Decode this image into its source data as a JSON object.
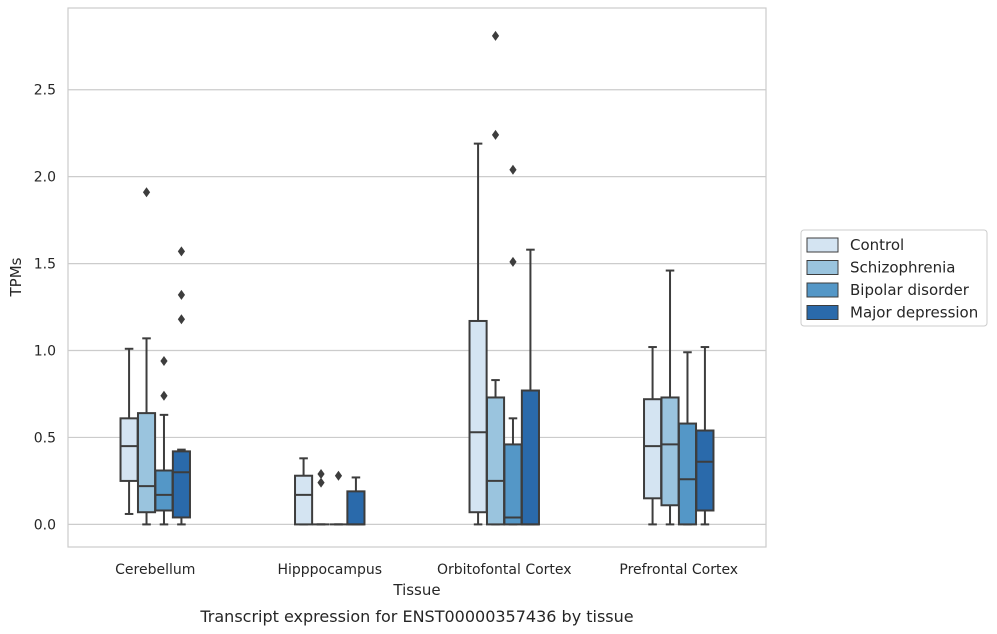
{
  "caption": "Transcript expression for ENST00000357436 by tissue",
  "chart_data": {
    "type": "box",
    "title": "",
    "xlabel": "Tissue",
    "ylabel": "TPMs",
    "ylim": [
      -0.13,
      2.97
    ],
    "yticks": [
      0.0,
      0.5,
      1.0,
      1.5,
      2.0,
      2.5
    ],
    "ytick_labels": [
      "0.0",
      "0.5",
      "1.0",
      "1.5",
      "2.0",
      "2.5"
    ],
    "grid": "horizontal",
    "legend_position": "right",
    "categories": [
      "Cerebellum",
      "Hipppocampus",
      "Orbitofontal Cortex",
      "Prefrontal Cortex"
    ],
    "series": [
      {
        "name": "Control",
        "color": "#d4e4f2",
        "boxes": [
          {
            "whisker_low": 0.06,
            "q1": 0.25,
            "median": 0.45,
            "q3": 0.61,
            "whisker_high": 1.01,
            "outliers": []
          },
          {
            "whisker_low": 0.0,
            "q1": 0.0,
            "median": 0.17,
            "q3": 0.28,
            "whisker_high": 0.38,
            "outliers": []
          },
          {
            "whisker_low": 0.0,
            "q1": 0.07,
            "median": 0.53,
            "q3": 1.17,
            "whisker_high": 2.19,
            "outliers": []
          },
          {
            "whisker_low": 0.0,
            "q1": 0.15,
            "median": 0.45,
            "q3": 0.72,
            "whisker_high": 1.02,
            "outliers": []
          }
        ]
      },
      {
        "name": "Schizophrenia",
        "color": "#9ac4de",
        "boxes": [
          {
            "whisker_low": 0.0,
            "q1": 0.07,
            "median": 0.22,
            "q3": 0.64,
            "whisker_high": 1.07,
            "outliers": [
              1.91
            ]
          },
          {
            "whisker_low": 0.0,
            "q1": 0.0,
            "median": 0.0,
            "q3": 0.0,
            "whisker_high": 0.0,
            "outliers": [
              0.24,
              0.29
            ]
          },
          {
            "whisker_low": 0.0,
            "q1": 0.0,
            "median": 0.25,
            "q3": 0.73,
            "whisker_high": 0.83,
            "outliers": [
              2.24,
              2.81
            ]
          },
          {
            "whisker_low": 0.0,
            "q1": 0.11,
            "median": 0.46,
            "q3": 0.73,
            "whisker_high": 1.46,
            "outliers": []
          }
        ]
      },
      {
        "name": "Bipolar disorder",
        "color": "#5497c7",
        "boxes": [
          {
            "whisker_low": 0.0,
            "q1": 0.08,
            "median": 0.17,
            "q3": 0.31,
            "whisker_high": 0.63,
            "outliers": [
              0.74,
              0.94
            ]
          },
          {
            "whisker_low": 0.0,
            "q1": 0.0,
            "median": 0.0,
            "q3": 0.0,
            "whisker_high": 0.0,
            "outliers": [
              0.28
            ]
          },
          {
            "whisker_low": 0.0,
            "q1": 0.0,
            "median": 0.04,
            "q3": 0.46,
            "whisker_high": 0.61,
            "outliers": [
              1.51,
              2.04
            ]
          },
          {
            "whisker_low": 0.0,
            "q1": 0.0,
            "median": 0.26,
            "q3": 0.58,
            "whisker_high": 0.99,
            "outliers": []
          }
        ]
      },
      {
        "name": "Major depression",
        "color": "#2a6aab",
        "boxes": [
          {
            "whisker_low": 0.0,
            "q1": 0.04,
            "median": 0.3,
            "q3": 0.42,
            "whisker_high": 0.43,
            "outliers": [
              1.18,
              1.32,
              1.57
            ]
          },
          {
            "whisker_low": 0.0,
            "q1": 0.0,
            "median": 0.0,
            "q3": 0.19,
            "whisker_high": 0.27,
            "outliers": []
          },
          {
            "whisker_low": 0.0,
            "q1": 0.0,
            "median": 0.0,
            "q3": 0.77,
            "whisker_high": 1.58,
            "outliers": []
          },
          {
            "whisker_low": 0.0,
            "q1": 0.08,
            "median": 0.36,
            "q3": 0.54,
            "whisker_high": 1.02,
            "outliers": []
          }
        ]
      }
    ]
  }
}
